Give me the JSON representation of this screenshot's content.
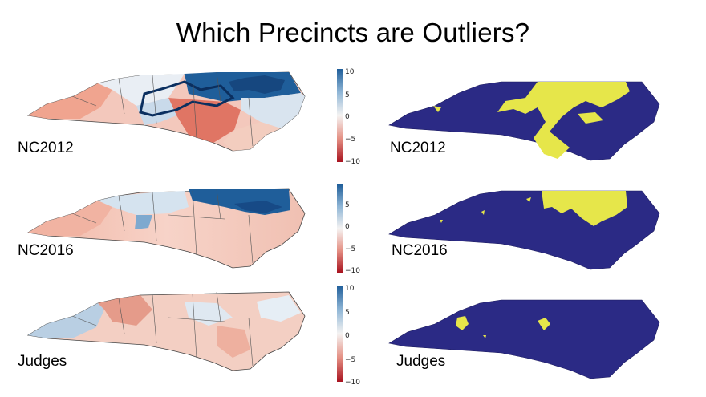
{
  "title": "Which Precincts are Outliers?",
  "rows": [
    {
      "left_label": "NC2012",
      "right_label": "NC2012",
      "colorbar_ticks": [
        "10",
        "5",
        "0",
        "−5",
        "−10"
      ]
    },
    {
      "left_label": "NC2016",
      "right_label": "NC2016",
      "colorbar_ticks": [
        "5",
        "0",
        "−5",
        "−10"
      ]
    },
    {
      "left_label": "Judges",
      "right_label": "Judges",
      "colorbar_ticks": [
        "10",
        "5",
        "0",
        "−5",
        "−10"
      ]
    }
  ],
  "colors": {
    "outlier_yellow": "#e6e64a",
    "non_outlier_navy": "#2b2a85",
    "diverging_blue": "#1f5e9a",
    "diverging_red": "#b8202a"
  }
}
